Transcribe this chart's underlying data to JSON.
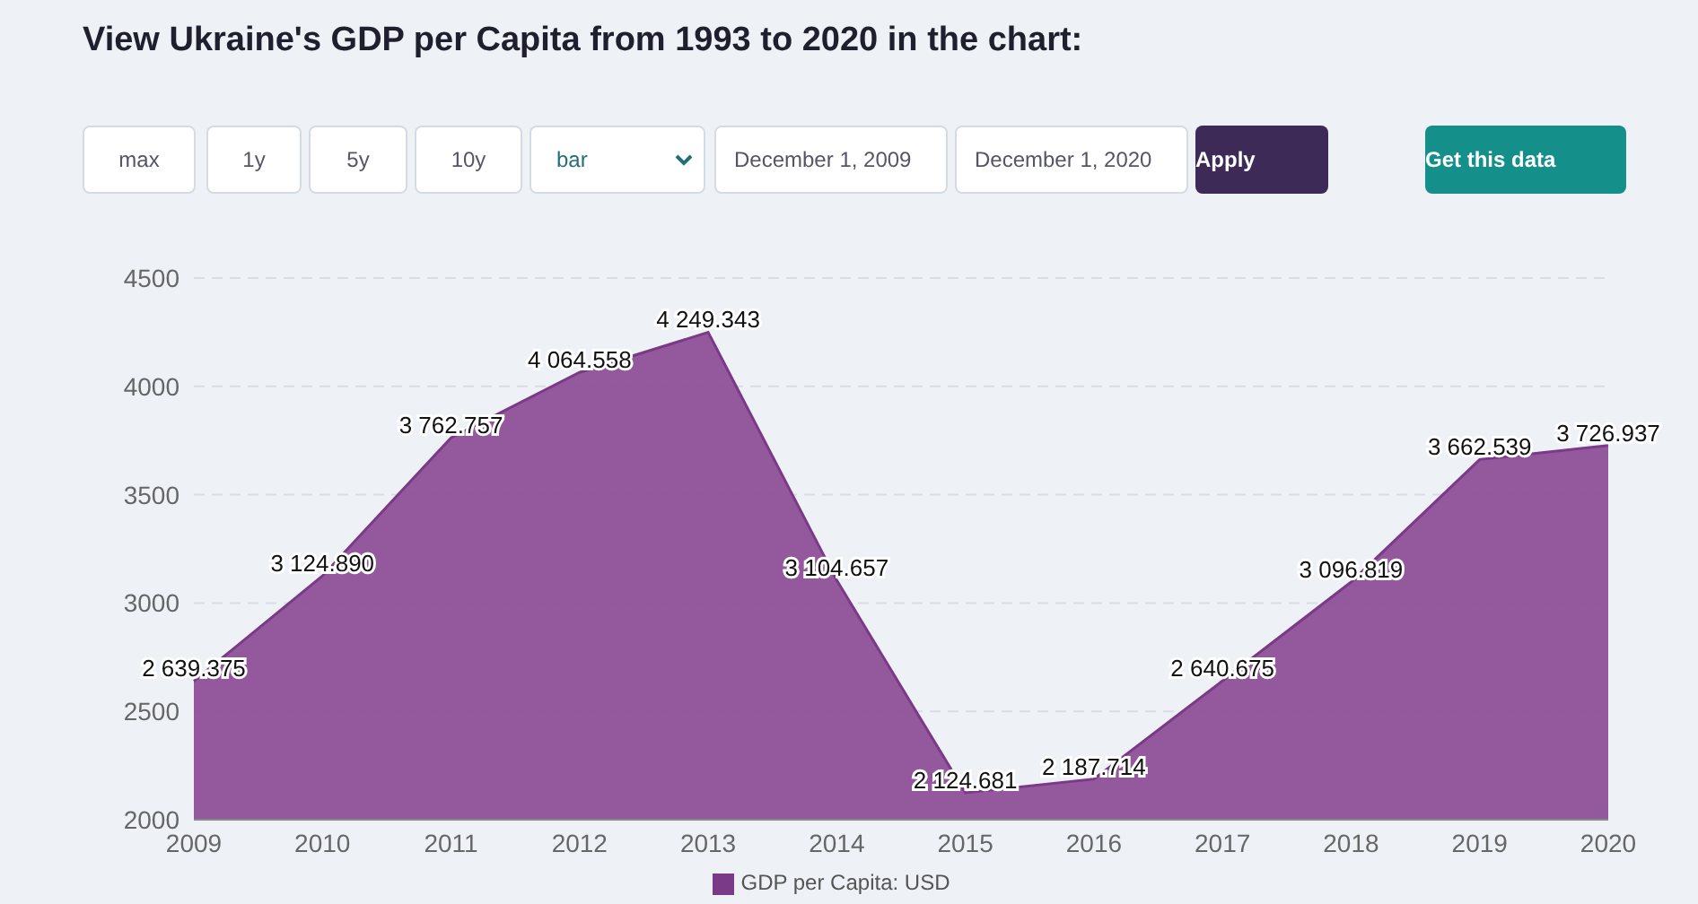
{
  "chart_data": {
    "type": "area",
    "title": "View Ukraine's GDP per Capita from 1993 to 2020 in the chart:",
    "categories": [
      "2009",
      "2010",
      "2011",
      "2012",
      "2013",
      "2014",
      "2015",
      "2016",
      "2017",
      "2018",
      "2019",
      "2020"
    ],
    "series": [
      {
        "name": "GDP per Capita: USD",
        "color": "#8e4f98",
        "values": [
          2639.375,
          3124.89,
          3762.757,
          4064.558,
          4249.343,
          3104.657,
          2124.681,
          2187.714,
          2640.675,
          3096.819,
          3662.539,
          3726.937
        ],
        "value_labels": [
          "2 639.375",
          "3 124.890",
          "3 762.757",
          "4 064.558",
          "4 249.343",
          "3 104.657",
          "2 124.681",
          "2 187.714",
          "2 640.675",
          "3 096.819",
          "3 662.539",
          "3 726.937"
        ]
      }
    ],
    "ylim": [
      2000,
      4500
    ],
    "yticks": [
      2000,
      2500,
      3000,
      3500,
      4000,
      4500
    ],
    "grid": "y",
    "legend": "bottom",
    "annotations": [
      "max",
      "1y",
      "5y",
      "10y",
      "bar",
      "December 1, 2009",
      "December 1, 2020",
      "Apply",
      "Get this data"
    ]
  }
}
